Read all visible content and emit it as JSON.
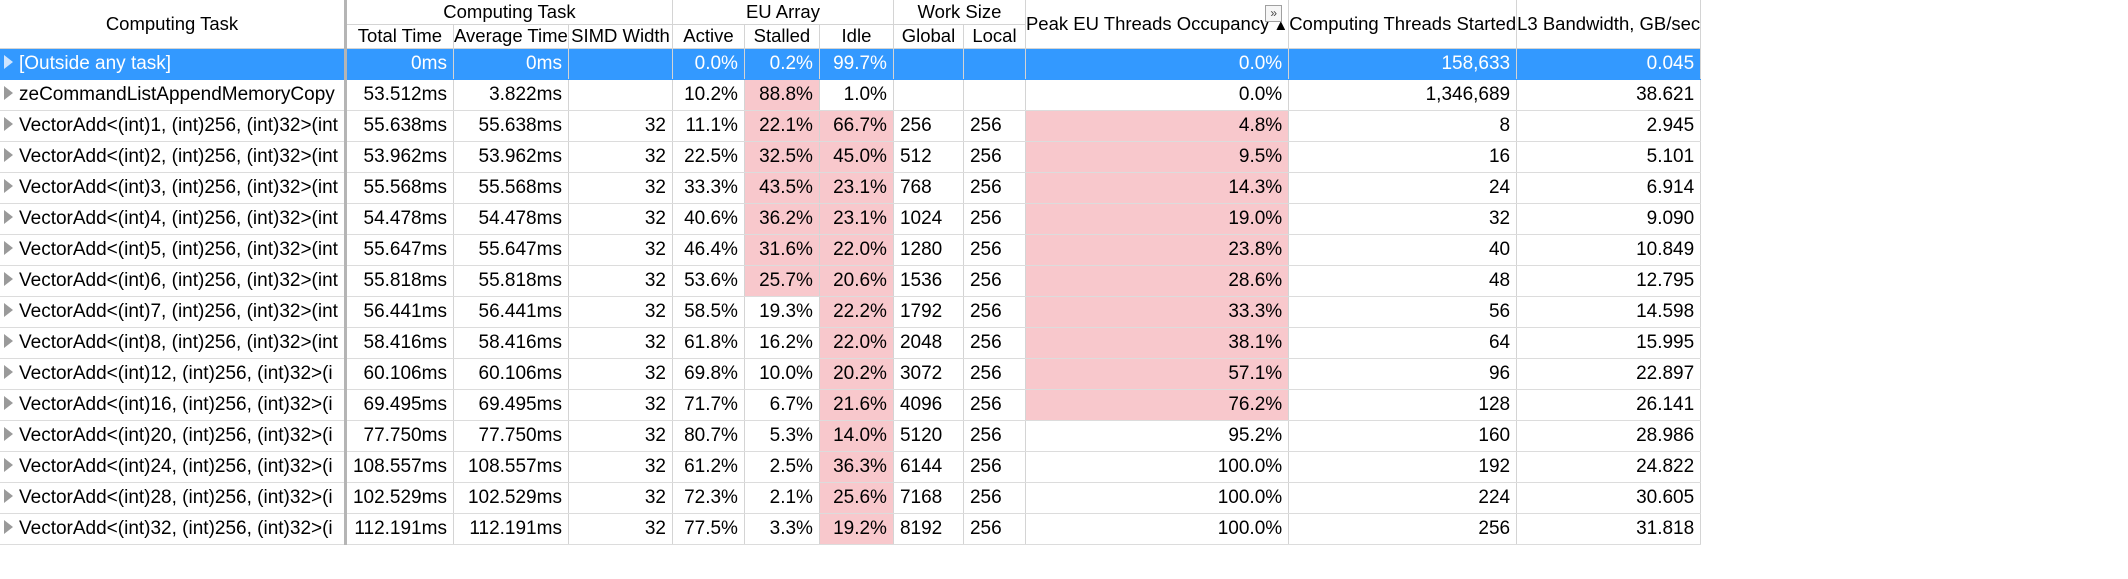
{
  "headers": {
    "computing_task": "Computing Task",
    "group_computing_task": "Computing Task",
    "group_eu_array": "EU Array",
    "group_work_size": "Work Size",
    "total_time": "Total Time",
    "average_time": "Average Time",
    "simd_width": "SIMD Width",
    "active": "Active",
    "stalled": "Stalled",
    "idle": "Idle",
    "global": "Global",
    "local": "Local",
    "peak_eu": "Peak EU Threads Occupancy",
    "sort_indicator": "▲",
    "expand_button": "»",
    "threads_started": "Computing Threads Started",
    "l3_bandwidth": "L3 Bandwidth, GB/sec"
  },
  "colors": {
    "selection": "#3399ff",
    "hot": "#f8c8cc"
  },
  "icons": {
    "row_expander": "triangle-right-icon"
  },
  "rows": [
    {
      "name": "[Outside any task]",
      "total": "0ms",
      "avg": "0ms",
      "simd": "",
      "active": "0.0%",
      "stalled": "0.2%",
      "idle": "99.7%",
      "global": "",
      "local": "",
      "peak": "0.0%",
      "threads": "158,633",
      "l3": "0.045",
      "selected": true,
      "hot": []
    },
    {
      "name": "zeCommandListAppendMemoryCopy",
      "total": "53.512ms",
      "avg": "3.822ms",
      "simd": "",
      "active": "10.2%",
      "stalled": "88.8%",
      "idle": "1.0%",
      "global": "",
      "local": "",
      "peak": "0.0%",
      "threads": "1,346,689",
      "l3": "38.621",
      "selected": false,
      "hot": [
        "stalled"
      ]
    },
    {
      "name": "VectorAdd<(int)1, (int)256, (int)32>(int",
      "total": "55.638ms",
      "avg": "55.638ms",
      "simd": "32",
      "active": "11.1%",
      "stalled": "22.1%",
      "idle": "66.7%",
      "global": "256",
      "local": "256",
      "peak": "4.8%",
      "threads": "8",
      "l3": "2.945",
      "selected": false,
      "hot": [
        "stalled",
        "idle",
        "peak"
      ]
    },
    {
      "name": "VectorAdd<(int)2, (int)256, (int)32>(int",
      "total": "53.962ms",
      "avg": "53.962ms",
      "simd": "32",
      "active": "22.5%",
      "stalled": "32.5%",
      "idle": "45.0%",
      "global": "512",
      "local": "256",
      "peak": "9.5%",
      "threads": "16",
      "l3": "5.101",
      "selected": false,
      "hot": [
        "stalled",
        "idle",
        "peak"
      ]
    },
    {
      "name": "VectorAdd<(int)3, (int)256, (int)32>(int",
      "total": "55.568ms",
      "avg": "55.568ms",
      "simd": "32",
      "active": "33.3%",
      "stalled": "43.5%",
      "idle": "23.1%",
      "global": "768",
      "local": "256",
      "peak": "14.3%",
      "threads": "24",
      "l3": "6.914",
      "selected": false,
      "hot": [
        "stalled",
        "idle",
        "peak"
      ]
    },
    {
      "name": "VectorAdd<(int)4, (int)256, (int)32>(int",
      "total": "54.478ms",
      "avg": "54.478ms",
      "simd": "32",
      "active": "40.6%",
      "stalled": "36.2%",
      "idle": "23.1%",
      "global": "1024",
      "local": "256",
      "peak": "19.0%",
      "threads": "32",
      "l3": "9.090",
      "selected": false,
      "hot": [
        "stalled",
        "idle",
        "peak"
      ]
    },
    {
      "name": "VectorAdd<(int)5, (int)256, (int)32>(int",
      "total": "55.647ms",
      "avg": "55.647ms",
      "simd": "32",
      "active": "46.4%",
      "stalled": "31.6%",
      "idle": "22.0%",
      "global": "1280",
      "local": "256",
      "peak": "23.8%",
      "threads": "40",
      "l3": "10.849",
      "selected": false,
      "hot": [
        "stalled",
        "idle",
        "peak"
      ]
    },
    {
      "name": "VectorAdd<(int)6, (int)256, (int)32>(int",
      "total": "55.818ms",
      "avg": "55.818ms",
      "simd": "32",
      "active": "53.6%",
      "stalled": "25.7%",
      "idle": "20.6%",
      "global": "1536",
      "local": "256",
      "peak": "28.6%",
      "threads": "48",
      "l3": "12.795",
      "selected": false,
      "hot": [
        "stalled",
        "idle",
        "peak"
      ]
    },
    {
      "name": "VectorAdd<(int)7, (int)256, (int)32>(int",
      "total": "56.441ms",
      "avg": "56.441ms",
      "simd": "32",
      "active": "58.5%",
      "stalled": "19.3%",
      "idle": "22.2%",
      "global": "1792",
      "local": "256",
      "peak": "33.3%",
      "threads": "56",
      "l3": "14.598",
      "selected": false,
      "hot": [
        "idle",
        "peak"
      ]
    },
    {
      "name": "VectorAdd<(int)8, (int)256, (int)32>(int",
      "total": "58.416ms",
      "avg": "58.416ms",
      "simd": "32",
      "active": "61.8%",
      "stalled": "16.2%",
      "idle": "22.0%",
      "global": "2048",
      "local": "256",
      "peak": "38.1%",
      "threads": "64",
      "l3": "15.995",
      "selected": false,
      "hot": [
        "idle",
        "peak"
      ]
    },
    {
      "name": "VectorAdd<(int)12, (int)256, (int)32>(i",
      "total": "60.106ms",
      "avg": "60.106ms",
      "simd": "32",
      "active": "69.8%",
      "stalled": "10.0%",
      "idle": "20.2%",
      "global": "3072",
      "local": "256",
      "peak": "57.1%",
      "threads": "96",
      "l3": "22.897",
      "selected": false,
      "hot": [
        "idle",
        "peak"
      ]
    },
    {
      "name": "VectorAdd<(int)16, (int)256, (int)32>(i",
      "total": "69.495ms",
      "avg": "69.495ms",
      "simd": "32",
      "active": "71.7%",
      "stalled": "6.7%",
      "idle": "21.6%",
      "global": "4096",
      "local": "256",
      "peak": "76.2%",
      "threads": "128",
      "l3": "26.141",
      "selected": false,
      "hot": [
        "idle",
        "peak"
      ]
    },
    {
      "name": "VectorAdd<(int)20, (int)256, (int)32>(i",
      "total": "77.750ms",
      "avg": "77.750ms",
      "simd": "32",
      "active": "80.7%",
      "stalled": "5.3%",
      "idle": "14.0%",
      "global": "5120",
      "local": "256",
      "peak": "95.2%",
      "threads": "160",
      "l3": "28.986",
      "selected": false,
      "hot": [
        "idle"
      ]
    },
    {
      "name": "VectorAdd<(int)24, (int)256, (int)32>(i",
      "total": "108.557ms",
      "avg": "108.557ms",
      "simd": "32",
      "active": "61.2%",
      "stalled": "2.5%",
      "idle": "36.3%",
      "global": "6144",
      "local": "256",
      "peak": "100.0%",
      "threads": "192",
      "l3": "24.822",
      "selected": false,
      "hot": [
        "idle"
      ]
    },
    {
      "name": "VectorAdd<(int)28, (int)256, (int)32>(i",
      "total": "102.529ms",
      "avg": "102.529ms",
      "simd": "32",
      "active": "72.3%",
      "stalled": "2.1%",
      "idle": "25.6%",
      "global": "7168",
      "local": "256",
      "peak": "100.0%",
      "threads": "224",
      "l3": "30.605",
      "selected": false,
      "hot": [
        "idle"
      ]
    },
    {
      "name": "VectorAdd<(int)32, (int)256, (int)32>(i",
      "total": "112.191ms",
      "avg": "112.191ms",
      "simd": "32",
      "active": "77.5%",
      "stalled": "3.3%",
      "idle": "19.2%",
      "global": "8192",
      "local": "256",
      "peak": "100.0%",
      "threads": "256",
      "l3": "31.818",
      "selected": false,
      "hot": [
        "idle"
      ]
    }
  ]
}
